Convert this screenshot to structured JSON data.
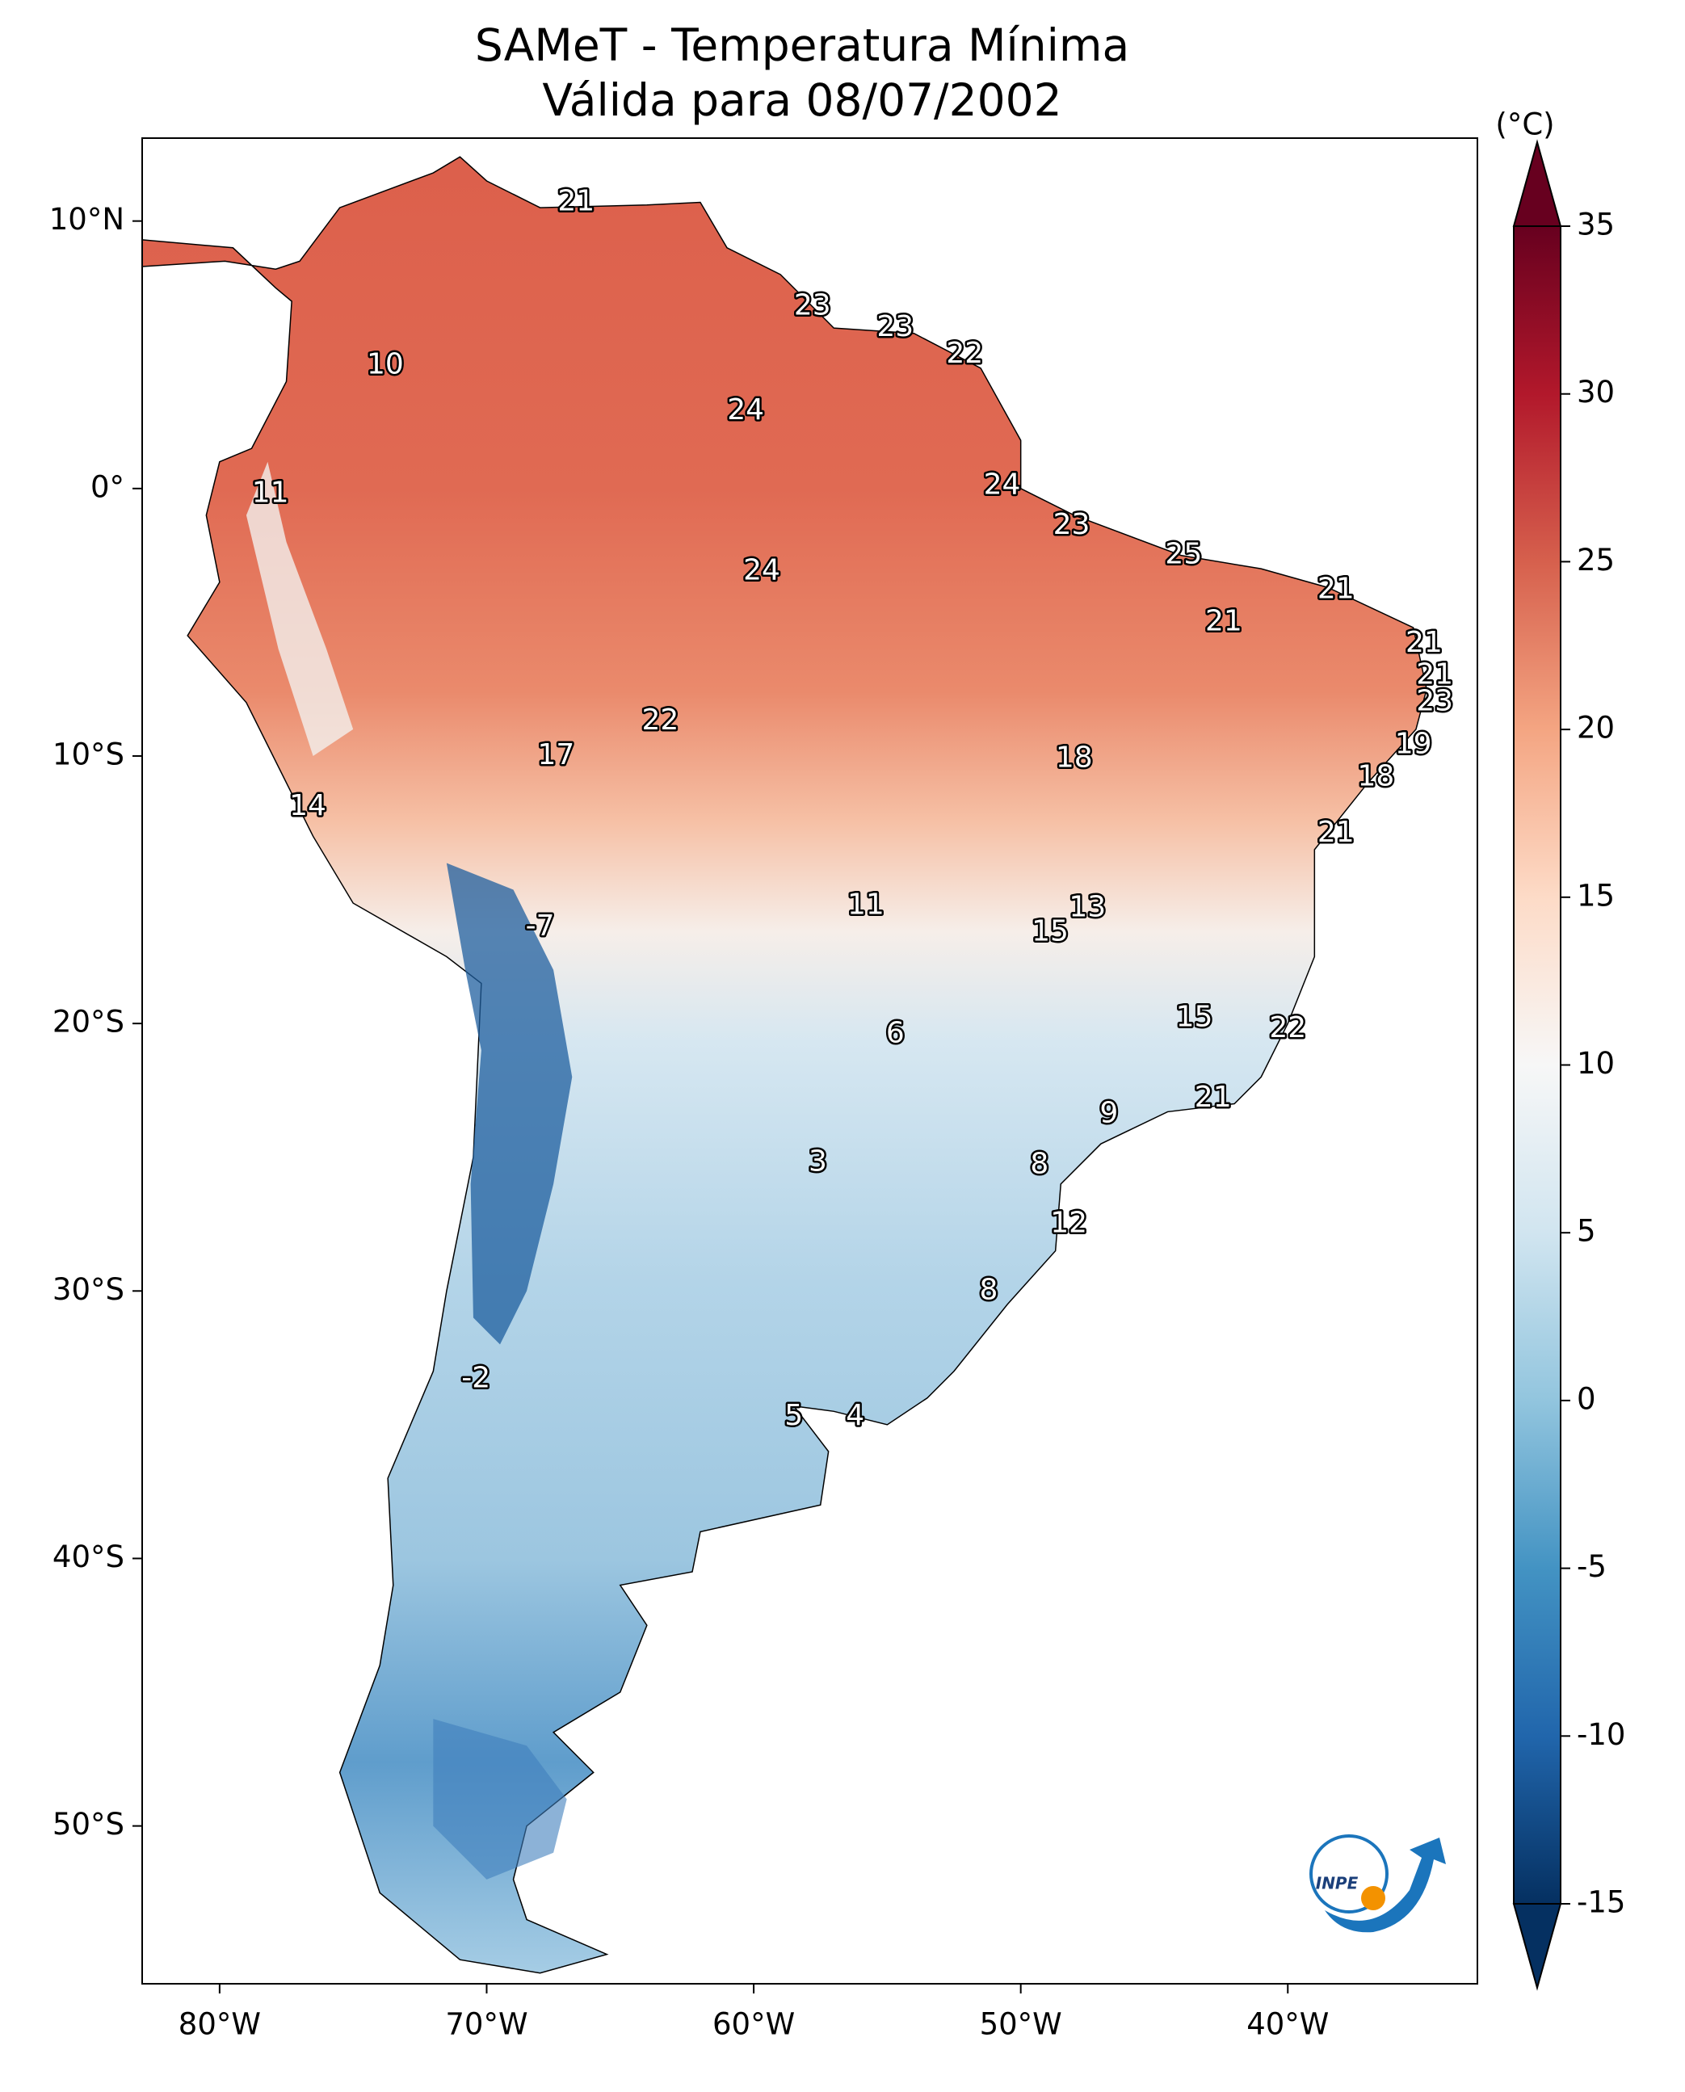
{
  "chart_data": {
    "type": "map",
    "title": "SAMeT - Temperatura Mínima",
    "subtitle": "Válida para 08/07/2002",
    "xlim": [
      -82.9,
      -32.9
    ],
    "ylim": [
      -55.9,
      13.1
    ],
    "xticks": [
      {
        "value": -80,
        "label": "80°W"
      },
      {
        "value": -70,
        "label": "70°W"
      },
      {
        "value": -60,
        "label": "60°W"
      },
      {
        "value": -50,
        "label": "50°W"
      },
      {
        "value": -40,
        "label": "40°W"
      }
    ],
    "yticks": [
      {
        "value": 10,
        "label": "10°N"
      },
      {
        "value": 0,
        "label": "0°"
      },
      {
        "value": -10,
        "label": "10°S"
      },
      {
        "value": -20,
        "label": "20°S"
      },
      {
        "value": -30,
        "label": "30°S"
      },
      {
        "value": -40,
        "label": "40°S"
      },
      {
        "value": -50,
        "label": "50°S"
      }
    ],
    "colorbar": {
      "label": "(°C)",
      "lim": [
        -15,
        35
      ],
      "ticks": [
        -15,
        -10,
        -5,
        0,
        5,
        10,
        15,
        20,
        25,
        30,
        35
      ]
    },
    "points": {
      "x": [
        -66.65,
        -57.8,
        -54.7,
        -52.1,
        -73.8,
        -60.3,
        -78.1,
        -50.7,
        -48.1,
        -43.9,
        -59.7,
        -38.2,
        -42.4,
        -34.9,
        -34.5,
        -34.5,
        -63.5,
        -35.3,
        -67.4,
        -48.0,
        -36.7,
        -76.7,
        -38.2,
        -55.8,
        -47.5,
        -68.0,
        -48.9,
        -43.5,
        -40.0,
        -54.7,
        -46.7,
        -42.8,
        -57.6,
        -49.3,
        -48.2,
        -51.2,
        -70.4,
        -58.5,
        -56.2
      ],
      "y": [
        10.7,
        6.8,
        6.0,
        5.0,
        4.6,
        2.9,
        -0.2,
        0.1,
        -1.4,
        -2.5,
        -3.1,
        -3.8,
        -5.0,
        -5.8,
        -7.0,
        -8.0,
        -8.7,
        -9.6,
        -10.0,
        -10.1,
        -10.8,
        -11.9,
        -12.9,
        -15.6,
        -15.7,
        -16.4,
        -16.6,
        -19.8,
        -20.2,
        -20.4,
        -23.4,
        -22.8,
        -25.2,
        -25.3,
        -27.5,
        -30.0,
        -33.3,
        -34.7,
        -34.7
      ],
      "values": [
        21,
        23,
        23,
        22,
        10,
        24,
        11,
        24,
        23,
        25,
        24,
        21,
        21,
        21,
        21,
        23,
        22,
        19,
        17,
        18,
        18,
        14,
        21,
        11,
        13,
        -7,
        15,
        15,
        22,
        6,
        9,
        21,
        3,
        8,
        12,
        8,
        -2,
        5,
        4
      ]
    },
    "logo": "INPE"
  }
}
